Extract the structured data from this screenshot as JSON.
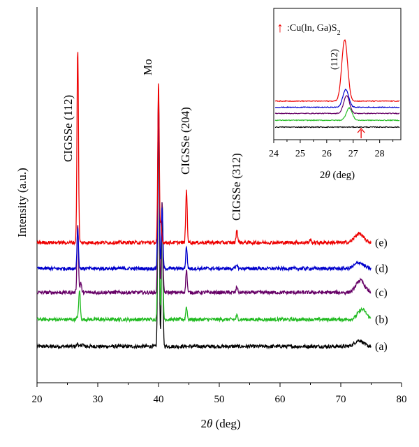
{
  "chart_data": [
    {
      "type": "line",
      "xlabel_main": "2",
      "xlabel_theta": "θ",
      "xlabel_unit": " (deg)",
      "ylabel": "Intensity (a.u.)",
      "xlim": [
        20,
        80
      ],
      "xticks": [
        "20",
        "30",
        "40",
        "50",
        "60",
        "70",
        "80"
      ],
      "grid": false,
      "peaks": [
        {
          "name": "CIGSSe (112)",
          "x": 26.7
        },
        {
          "name": "Mo",
          "x": 40.0
        },
        {
          "name": "CIGSSe (204)",
          "x": 44.6
        },
        {
          "name": "CIGSSe (312)",
          "x": 52.9
        }
      ],
      "series": [
        {
          "name": "(a)",
          "color": "#000000",
          "baseline": 0.0,
          "peak_heights": {
            "26.7": 0.3,
            "27.5": 0.25,
            "40.0": 25.0,
            "40.6": 14.0,
            "44.6": 0.0,
            "52.9": 0.0,
            "73.0": 0.6
          }
        },
        {
          "name": "(b)",
          "color": "#22bb22",
          "baseline": 2.7,
          "peak_heights": {
            "26.7": 0.3,
            "27.0": 3.0,
            "40.0": 23.0,
            "40.6": 12.0,
            "44.6": 1.3,
            "52.9": 0.4,
            "73.5": 1.0
          }
        },
        {
          "name": "(c)",
          "color": "#660066",
          "baseline": 5.4,
          "peak_heights": {
            "26.7": 7.0,
            "27.2": 1.0,
            "40.0": 20.0,
            "40.6": 9.0,
            "44.6": 2.3,
            "52.9": 0.6,
            "73.2": 1.2
          }
        },
        {
          "name": "(d)",
          "color": "#0000cc",
          "baseline": 7.8,
          "peak_heights": {
            "26.7": 4.0,
            "40.0": 18.0,
            "40.6": 6.0,
            "44.6": 2.2,
            "52.9": 0.4,
            "73.0": 0.6
          }
        },
        {
          "name": "(e)",
          "color": "#ee0000",
          "baseline": 10.4,
          "peak_heights": {
            "26.7": 19.5,
            "40.0": 16.0,
            "40.4": 2.0,
            "44.6": 5.3,
            "52.9": 1.3,
            "65.0": 0.3,
            "73.0": 0.9
          }
        }
      ]
    },
    {
      "type": "line",
      "inset": true,
      "xlabel_main": "2",
      "xlabel_theta": "θ",
      "xlabel_unit": " (deg)",
      "xlim": [
        24,
        28.8
      ],
      "xticks": [
        "24",
        "25",
        "26",
        "27",
        "28"
      ],
      "annotation_arrow": "↑",
      "annotation_text": ":Cu(ln, Ga)S",
      "annotation_sub": "2",
      "peak_label": "(112)",
      "arrow_x": 27.3,
      "series": [
        {
          "name": "(a)",
          "color": "#000000",
          "baseline": 0.0,
          "peak_center": 26.8,
          "peak_height": 0.0
        },
        {
          "name": "(b)",
          "color": "#22bb22",
          "baseline": 1.0,
          "peak_center": 26.85,
          "peak_height": 1.8
        },
        {
          "name": "(c)",
          "color": "#660066",
          "baseline": 2.0,
          "peak_center": 26.75,
          "peak_height": 2.6
        },
        {
          "name": "(d)",
          "color": "#0000cc",
          "baseline": 2.9,
          "peak_center": 26.72,
          "peak_height": 2.6
        },
        {
          "name": "(e)",
          "color": "#ee0000",
          "baseline": 3.8,
          "peak_center": 26.68,
          "peak_height": 9.0
        }
      ]
    }
  ]
}
